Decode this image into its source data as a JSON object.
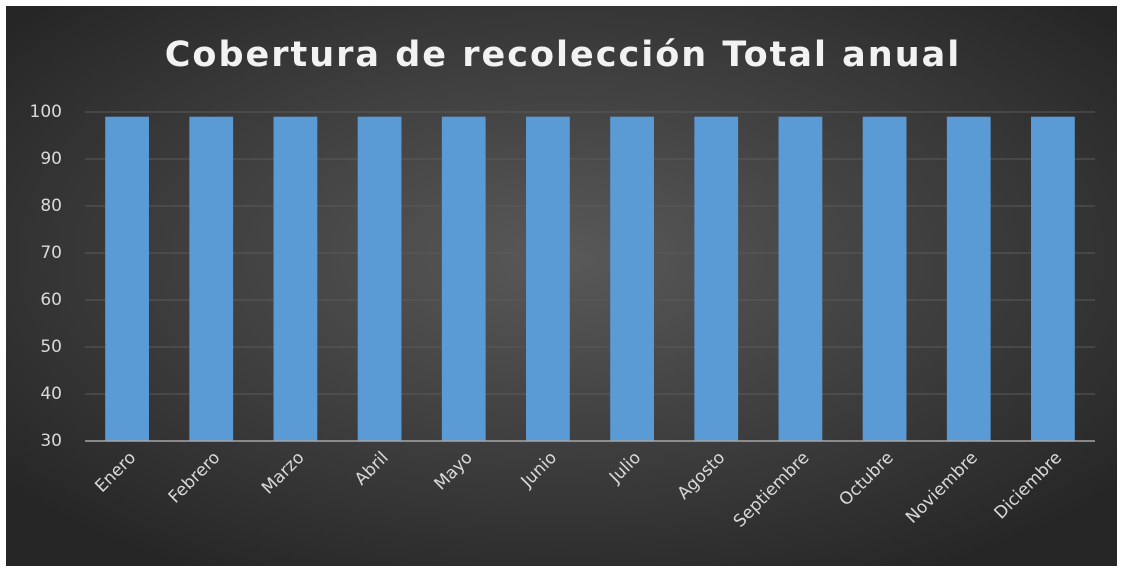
{
  "chart_data": {
    "type": "bar",
    "title": "Cobertura de recolección Total anual",
    "categories": [
      "Enero",
      "Febrero",
      "Marzo",
      "Abril",
      "Mayo",
      "Junio",
      "Julio",
      "Agosto",
      "Septiembre",
      "Octubre",
      "Noviembre",
      "Diciembre"
    ],
    "values": [
      99,
      99,
      99,
      99,
      99,
      99,
      99,
      99,
      99,
      99,
      99,
      99
    ],
    "color": "#5b9bd5",
    "ylim": [
      30,
      100
    ],
    "yticks": [
      30,
      40,
      50,
      60,
      70,
      80,
      90,
      100
    ],
    "grid": true
  }
}
